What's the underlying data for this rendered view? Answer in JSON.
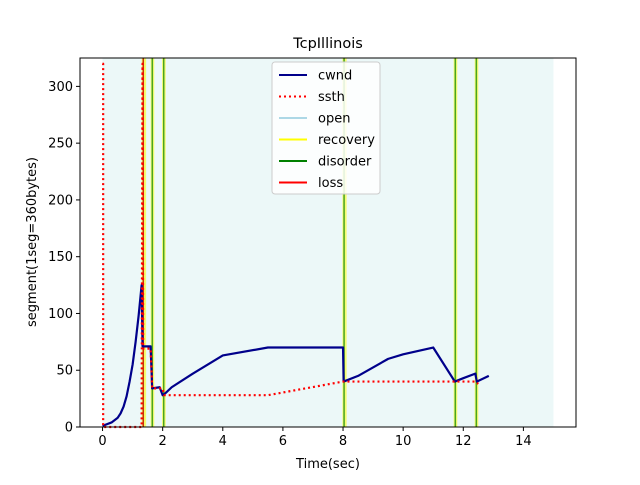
{
  "chart_data": {
    "type": "line",
    "title": "TcpIllinois",
    "xlabel": "Time(sec)",
    "ylabel": "segment(1seg=360bytes)",
    "xlim": [
      -0.75,
      15.75
    ],
    "ylim": [
      0,
      325
    ],
    "xticks": [
      0,
      2,
      4,
      6,
      8,
      10,
      12,
      14
    ],
    "yticks": [
      0,
      50,
      100,
      150,
      200,
      250,
      300
    ],
    "grid": false,
    "legend_position": "top-center",
    "legend": [
      {
        "label": "cwnd",
        "color": "#00008b",
        "style": "solid"
      },
      {
        "label": "ssth",
        "color": "#ff0000",
        "style": "dotted"
      },
      {
        "label": "open",
        "color": "#add8e6",
        "style": "solid"
      },
      {
        "label": "recovery",
        "color": "#ffff00",
        "style": "solid"
      },
      {
        "label": "disorder",
        "color": "#008000",
        "style": "solid"
      },
      {
        "label": "loss",
        "color": "#ff0000",
        "style": "solid"
      }
    ],
    "state_regions": {
      "open": {
        "color": "#e0f4f4",
        "spans": [
          [
            0,
            15
          ]
        ]
      },
      "recovery": {
        "color": "#ffff00",
        "spans": [
          [
            1.3,
            1.45
          ],
          [
            1.6,
            1.72
          ],
          [
            1.98,
            2.1
          ],
          [
            7.98,
            8.12
          ],
          [
            11.68,
            11.8
          ],
          [
            12.38,
            12.5
          ]
        ]
      },
      "disorder": {
        "color": "#008000",
        "spans": [
          [
            1.33,
            1.35
          ],
          [
            1.63,
            1.65
          ],
          [
            2.01,
            2.03
          ],
          [
            8.01,
            8.03
          ],
          [
            11.71,
            11.73
          ],
          [
            12.41,
            12.43
          ]
        ]
      },
      "loss": {
        "color": "#ff0000",
        "spans": [
          [
            1.33,
            1.35
          ]
        ]
      }
    },
    "series": [
      {
        "name": "cwnd",
        "color": "#00008b",
        "points": [
          [
            0,
            1
          ],
          [
            0.3,
            4
          ],
          [
            0.5,
            8
          ],
          [
            0.6,
            12
          ],
          [
            0.7,
            18
          ],
          [
            0.8,
            27
          ],
          [
            0.9,
            40
          ],
          [
            1.0,
            55
          ],
          [
            1.1,
            75
          ],
          [
            1.2,
            98
          ],
          [
            1.3,
            125
          ],
          [
            1.33,
            71
          ],
          [
            1.6,
            71
          ],
          [
            1.65,
            34
          ],
          [
            1.9,
            35
          ],
          [
            2.0,
            28
          ],
          [
            2.1,
            30
          ],
          [
            2.3,
            35
          ],
          [
            3.0,
            47
          ],
          [
            4.0,
            63
          ],
          [
            5.5,
            70
          ],
          [
            8.0,
            70
          ],
          [
            8.02,
            40
          ],
          [
            8.5,
            45
          ],
          [
            9.5,
            60
          ],
          [
            10.0,
            64
          ],
          [
            11.0,
            70
          ],
          [
            11.72,
            40
          ],
          [
            12.0,
            43
          ],
          [
            12.4,
            47
          ],
          [
            12.45,
            40
          ],
          [
            12.85,
            45
          ]
        ]
      },
      {
        "name": "ssth",
        "color": "#ff0000",
        "points": [
          [
            0,
            320
          ],
          [
            0.02,
            320
          ],
          [
            0.02,
            0
          ],
          [
            1.3,
            0
          ],
          [
            1.33,
            320
          ],
          [
            1.35,
            69
          ],
          [
            1.6,
            69
          ],
          [
            1.65,
            34
          ],
          [
            2.0,
            34
          ],
          [
            2.05,
            28
          ],
          [
            5.5,
            28
          ],
          [
            8.0,
            40
          ],
          [
            12.4,
            40
          ],
          [
            12.5,
            38
          ]
        ]
      }
    ]
  }
}
